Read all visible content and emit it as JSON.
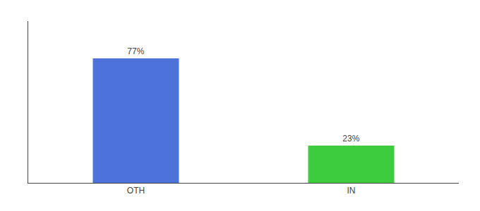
{
  "chart_data": {
    "type": "bar",
    "categories": [
      "OTH",
      "IN"
    ],
    "values": [
      77,
      23
    ],
    "value_labels": [
      "77%",
      "23%"
    ],
    "colors": [
      "#4d72d9",
      "#3dcc3d"
    ],
    "ylim": [
      0,
      100
    ],
    "data_labels": true,
    "tick_labels": "x",
    "grid": false
  }
}
